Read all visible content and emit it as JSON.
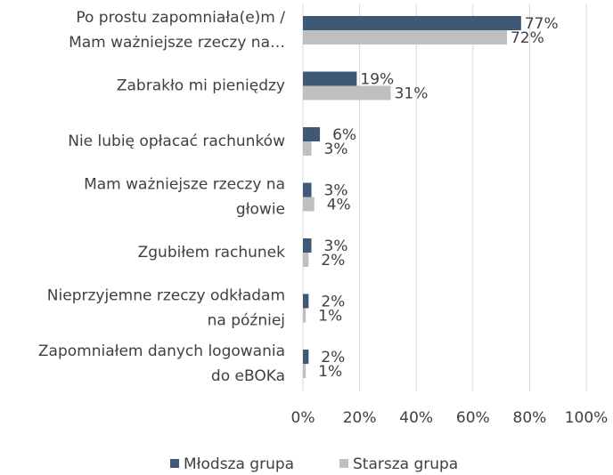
{
  "chart_data": {
    "type": "bar",
    "orientation": "horizontal",
    "categories": [
      [
        "Po prostu zapomniała(e)m /",
        "Mam ważniejsze rzeczy na…"
      ],
      [
        "Zabrakło mi pieniędzy"
      ],
      [
        "Nie lubię opłacać rachunków"
      ],
      [
        "Mam ważniejsze rzeczy na",
        "głowie"
      ],
      [
        "Zgubiłem rachunek"
      ],
      [
        "Nieprzyjemne rzeczy odkładam",
        "na później"
      ],
      [
        "Zapomniałem danych logowania",
        "do eBOKa"
      ]
    ],
    "series": [
      {
        "name": "Młodsza grupa",
        "color": "#3e5875",
        "values": [
          77,
          19,
          6,
          3,
          3,
          2,
          2
        ],
        "value_labels": [
          "77%",
          "19%",
          "6%",
          "3%",
          "3%",
          "2%",
          "2%"
        ]
      },
      {
        "name": "Starsza grupa",
        "color": "#bfbfbf",
        "values": [
          72,
          31,
          3,
          4,
          2,
          1,
          1
        ],
        "value_labels": [
          "72%",
          "31%",
          "3%",
          "4%",
          "2%",
          "1%",
          "1%"
        ]
      }
    ],
    "xlim": [
      0,
      100
    ],
    "xticks": [
      {
        "value": 0,
        "label": "0%"
      },
      {
        "value": 20,
        "label": "20%"
      },
      {
        "value": 40,
        "label": "40%"
      },
      {
        "value": 60,
        "label": "60%"
      },
      {
        "value": 80,
        "label": "80%"
      },
      {
        "value": 100,
        "label": "100%"
      }
    ],
    "grid": true,
    "legend": "bottom"
  }
}
